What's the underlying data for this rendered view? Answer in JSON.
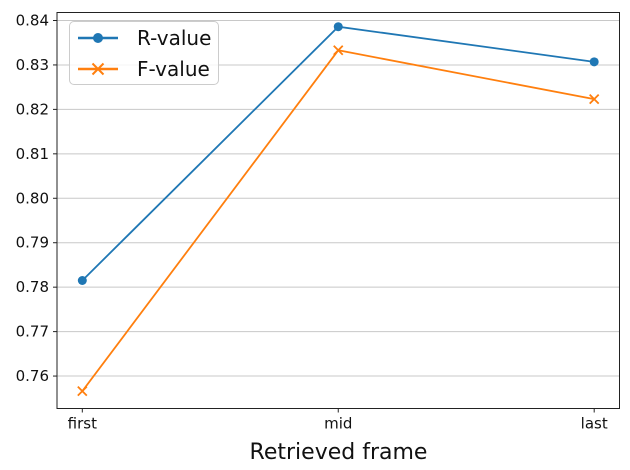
{
  "chart_data": {
    "type": "line",
    "title": "",
    "xlabel": "Retrieved frame",
    "ylabel": "",
    "categories": [
      "first",
      "mid",
      "last"
    ],
    "series": [
      {
        "name": "R-value",
        "marker": "circle",
        "color": "#1f77b4",
        "values": [
          0.7815,
          0.8386,
          0.8307
        ]
      },
      {
        "name": "F-value",
        "marker": "x",
        "color": "#ff7f0e",
        "values": [
          0.7566,
          0.8333,
          0.8223
        ]
      }
    ],
    "ylim": [
      0.7527,
      0.8418
    ],
    "yticks": [
      0.76,
      0.77,
      0.78,
      0.79,
      0.8,
      0.81,
      0.82,
      0.83,
      0.84
    ],
    "ytick_decimals": 2,
    "x_margin_frac": 0.045,
    "grid": "horizontal",
    "legend_position": "upper-left",
    "colors": {
      "grid": "#c8c8c8",
      "spine": "#222222",
      "text": "#111111",
      "background": "#ffffff"
    }
  }
}
